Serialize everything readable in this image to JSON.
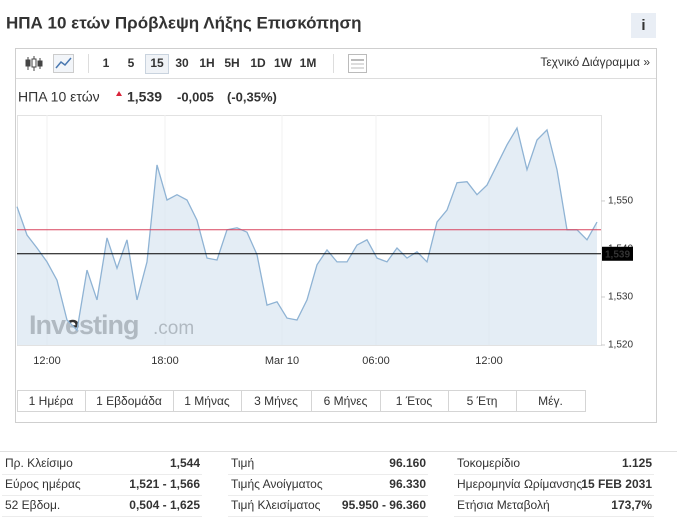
{
  "header": {
    "title": "ΗΠΑ 10 ετών Πρόβλεψη Λήξης Επισκόπηση"
  },
  "toolbar": {
    "intervals": [
      "1",
      "5",
      "15",
      "30",
      "1H",
      "5H",
      "1D",
      "1W",
      "1M"
    ],
    "active_interval": 2,
    "tech_link": "Τεχνικό Διάγραμμα »"
  },
  "quote": {
    "name": "ΗΠΑ 10 ετών",
    "price": "1,539",
    "change": "-0,005",
    "change_pct": "(-0,35%)"
  },
  "chart_data": {
    "type": "area",
    "watermark": [
      "Investing",
      ".com"
    ],
    "series": [
      {
        "color": "#8fb3d4",
        "values": [
          1.5488,
          1.5429,
          1.5402,
          1.5373,
          1.5335,
          1.5252,
          1.5231,
          1.5356,
          1.5294,
          1.5423,
          1.536,
          1.5419,
          1.5294,
          1.5373,
          1.5575,
          1.5502,
          1.5513,
          1.5502,
          1.546,
          1.5381,
          1.5377,
          1.544,
          1.5444,
          1.5435,
          1.5388,
          1.5283,
          1.529,
          1.5256,
          1.5252,
          1.5294,
          1.5367,
          1.5398,
          1.5373,
          1.5373,
          1.5408,
          1.5419,
          1.5381,
          1.5373,
          1.5402,
          1.5381,
          1.5394,
          1.5373,
          1.5456,
          1.5481,
          1.5538,
          1.554,
          1.5513,
          1.5533,
          1.5575,
          1.5617,
          1.5652,
          1.5565,
          1.5627,
          1.5648,
          1.5565,
          1.544,
          1.544,
          1.5419,
          1.5456
        ]
      }
    ],
    "xlim": [
      0,
      58.4
    ],
    "xticks": [
      {
        "value": 3,
        "label": "12:00"
      },
      {
        "value": 14.8,
        "label": "18:00"
      },
      {
        "value": 26.5,
        "label": "Mar 10"
      },
      {
        "value": 35.9,
        "label": "06:00"
      },
      {
        "value": 47.2,
        "label": "12:00"
      }
    ],
    "ylim": [
      1.52,
      1.5679
    ],
    "yticks": [
      {
        "value": 1.52,
        "label": "1,520"
      },
      {
        "value": 1.53,
        "label": "1,530"
      },
      {
        "value": 1.54,
        "label": "1,540"
      },
      {
        "value": 1.55,
        "label": "1,550"
      }
    ],
    "reference_lines": [
      {
        "value": 1.544,
        "color": "#d9455f"
      },
      {
        "value": 1.539,
        "label": "1,539",
        "color": "#000000"
      }
    ]
  },
  "ranges": [
    "1 Ημέρα",
    "1 Εβδομάδα",
    "1 Μήνας",
    "3 Μήνες",
    "6 Μήνες",
    "1 Έτος",
    "5 Έτη",
    "Μέγ."
  ],
  "stats": [
    [
      [
        "Πρ. Κλείσιμο",
        "1,544"
      ],
      [
        "Τιμή",
        "96.160"
      ],
      [
        "Τοκομερίδιο",
        "1.125"
      ]
    ],
    [
      [
        "Εύρος ημέρας",
        "1,521 - 1,566"
      ],
      [
        "Τιμής Ανοίγματος",
        "96.330"
      ],
      [
        "Ημερομηνία Ωρίμανσης",
        "15 FEB 2031"
      ]
    ],
    [
      [
        "52 Εβδομ.",
        "0,504 - 1,625"
      ],
      [
        "Τιμή Κλεισίματος",
        "95.950 - 96.360"
      ],
      [
        "Ετήσια Μεταβολή",
        "173,7%"
      ]
    ]
  ]
}
